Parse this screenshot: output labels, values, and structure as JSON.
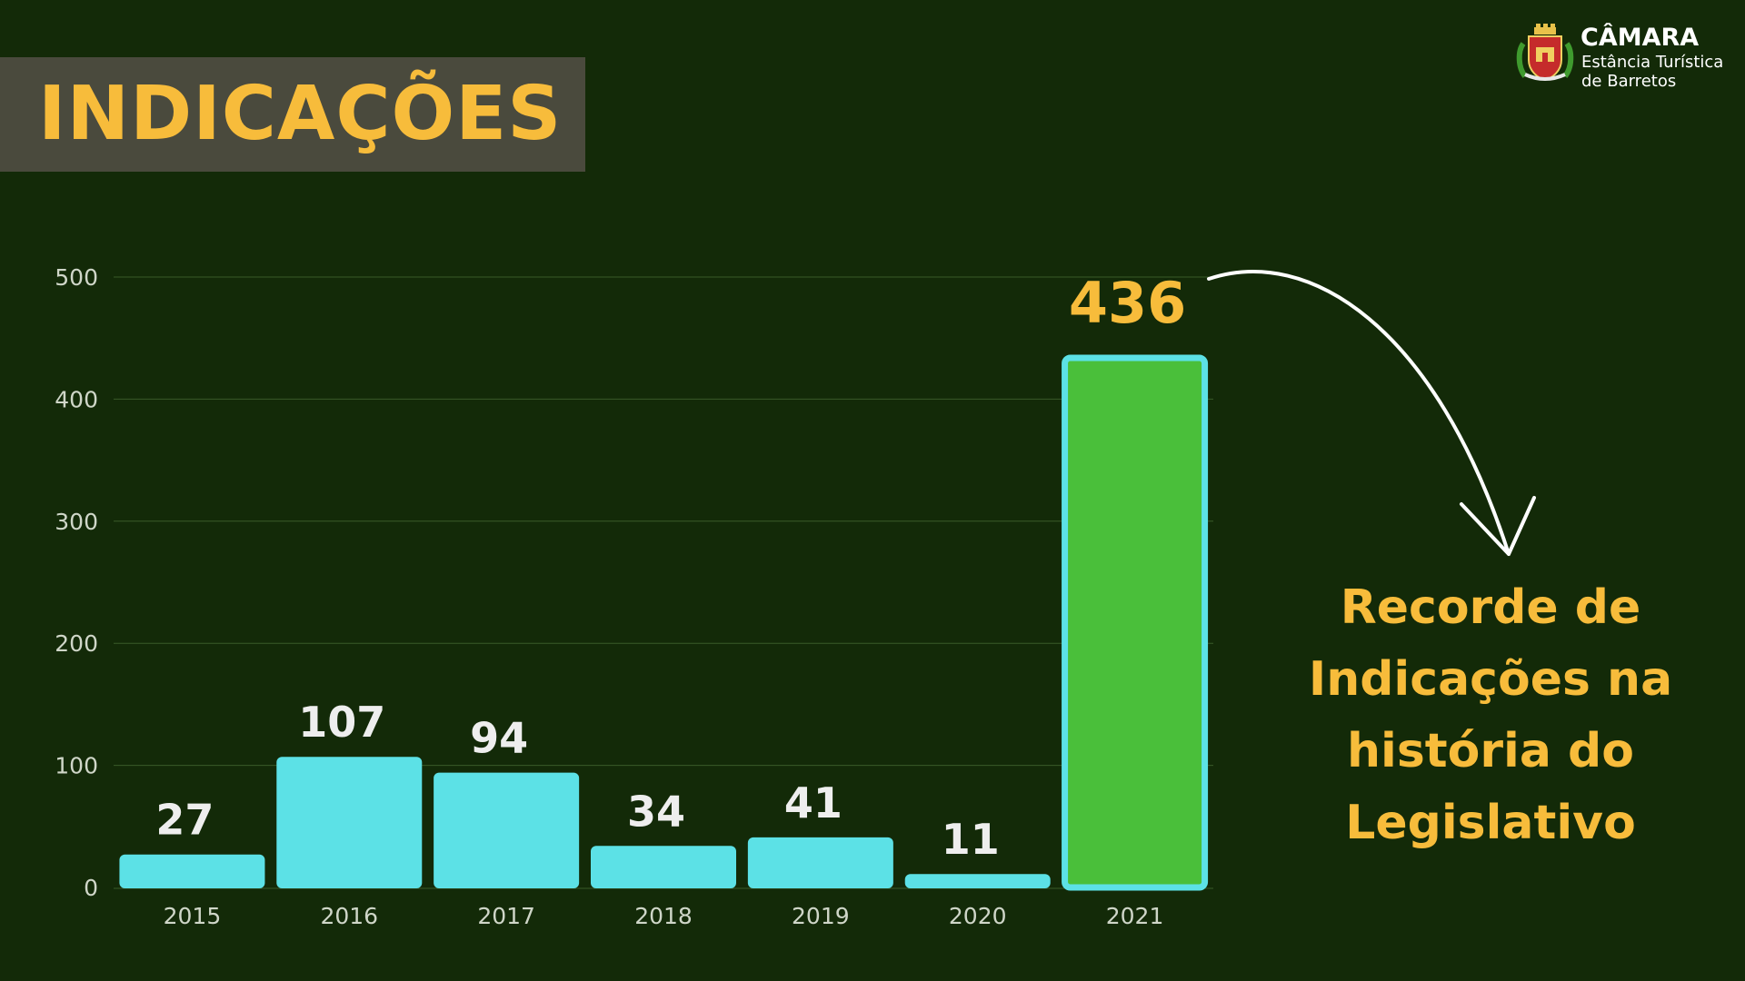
{
  "header": {
    "title": "INDICAÇÕES"
  },
  "brand": {
    "name": "CÂMARA",
    "subtitle_lines": [
      "Estância Turística",
      "de Barretos"
    ],
    "logo_icon": "coat-of-arms-icon"
  },
  "colors": {
    "background": "#132a08",
    "bar": "#5ce1e6",
    "highlight_bar": "#4abf3a",
    "accent": "#f7bc3b",
    "label": "#eeeeee"
  },
  "chart_data": {
    "type": "bar",
    "categories": [
      "2015",
      "2016",
      "2017",
      "2018",
      "2019",
      "2020",
      "2021"
    ],
    "values": [
      27,
      107,
      94,
      34,
      41,
      11,
      436
    ],
    "title": "INDICAÇÕES",
    "xlabel": "",
    "ylabel": "",
    "ylim": [
      0,
      500
    ],
    "yticks": [
      0,
      100,
      200,
      300,
      400,
      500
    ],
    "grid": true,
    "legend": "none",
    "highlight_category": "2021",
    "data_labels": true
  },
  "annotation": {
    "lines": [
      "Recorde de",
      "Indicações na",
      "história do",
      "Legislativo"
    ],
    "arrow_icon": "curved-arrow-icon"
  }
}
